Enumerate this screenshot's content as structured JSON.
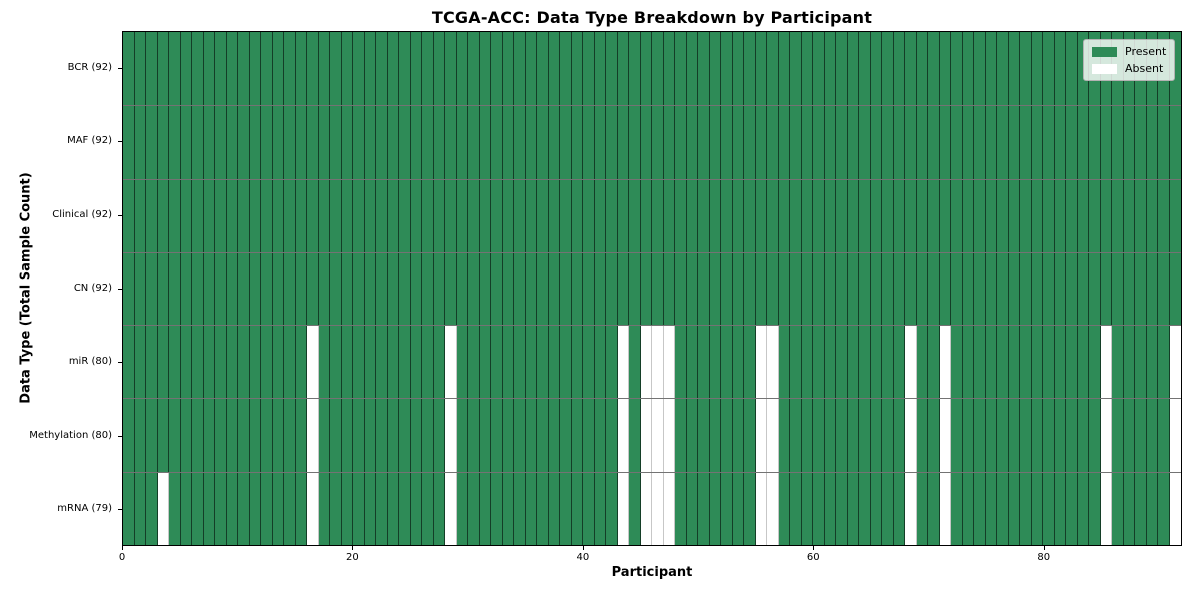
{
  "title": "TCGA-ACC: Data Type Breakdown by Participant",
  "chart_data": {
    "type": "heatmap",
    "title": "TCGA-ACC: Data Type Breakdown by Participant",
    "xlabel": "Participant",
    "ylabel": "Data Type (Total Sample Count)",
    "n_participants": 92,
    "x_range": [
      0,
      92
    ],
    "x_ticks": [
      0,
      20,
      40,
      60,
      80
    ],
    "grid": "cell-edges",
    "legend_position": "upper right",
    "colors": {
      "present": "#2e8b57",
      "absent": "#ffffff",
      "cell_edge": "#000000",
      "background": "#ffffff"
    },
    "legend": [
      {
        "label": "Present",
        "color": "#2e8b57"
      },
      {
        "label": "Absent",
        "color": "#ffffff"
      }
    ],
    "rows": [
      {
        "label": "BCR (92)",
        "data_type": "BCR",
        "present_count": 92,
        "absent_participants": []
      },
      {
        "label": "MAF (92)",
        "data_type": "MAF",
        "present_count": 92,
        "absent_participants": []
      },
      {
        "label": "Clinical (92)",
        "data_type": "Clinical",
        "present_count": 92,
        "absent_participants": []
      },
      {
        "label": "CN (92)",
        "data_type": "CN",
        "present_count": 92,
        "absent_participants": []
      },
      {
        "label": "miR (80)",
        "data_type": "miR",
        "present_count": 80,
        "absent_participants": [
          16,
          28,
          43,
          45,
          46,
          47,
          55,
          56,
          68,
          71,
          85,
          91
        ]
      },
      {
        "label": "Methylation (80)",
        "data_type": "Methylation",
        "present_count": 80,
        "absent_participants": [
          16,
          28,
          43,
          45,
          46,
          47,
          55,
          56,
          68,
          71,
          85,
          91
        ]
      },
      {
        "label": "mRNA (79)",
        "data_type": "mRNA",
        "present_count": 79,
        "absent_participants": [
          3,
          16,
          28,
          43,
          45,
          46,
          47,
          55,
          56,
          68,
          71,
          85,
          91
        ]
      }
    ]
  }
}
